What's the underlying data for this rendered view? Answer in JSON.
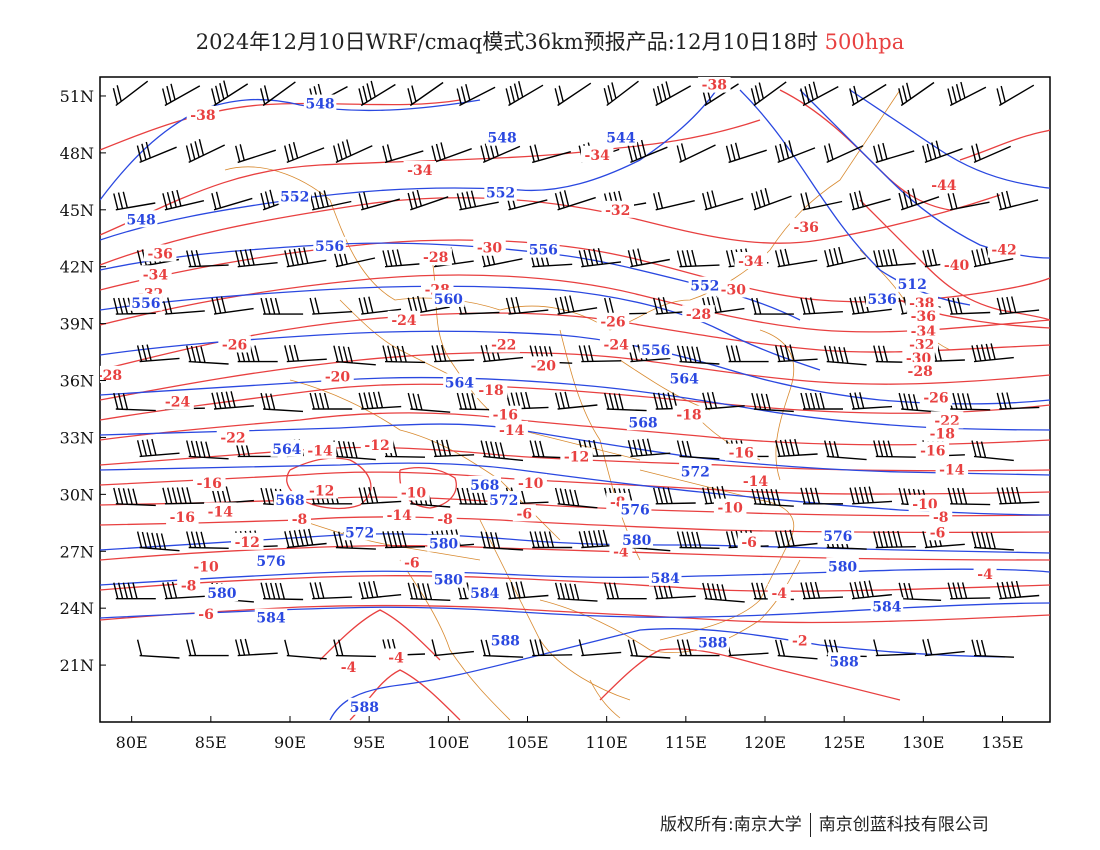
{
  "title": {
    "main": "2024年12月10日WRF/cmaq模式36km预报产品:12月10日18时",
    "level": "500hpa",
    "level_color": "#e84040"
  },
  "footer": {
    "left": "版权所有:南京大学",
    "right": "南京创蓝科技有限公司"
  },
  "colors": {
    "temperature": "#e84040",
    "geopotential": "#2a48e0",
    "wind": "#000000",
    "border": "#d88a30"
  },
  "map": {
    "lon_range": [
      78,
      138
    ],
    "lat_range": [
      18,
      52
    ],
    "lon_ticks": [
      "80E",
      "85E",
      "90E",
      "95E",
      "100E",
      "105E",
      "110E",
      "115E",
      "120E",
      "125E",
      "130E",
      "135E"
    ],
    "lon_tick_values": [
      80,
      85,
      90,
      95,
      100,
      105,
      110,
      115,
      120,
      125,
      130,
      135
    ],
    "lat_ticks": [
      "51N",
      "48N",
      "45N",
      "42N",
      "39N",
      "36N",
      "33N",
      "30N",
      "27N",
      "24N",
      "21N"
    ],
    "lat_tick_values": [
      51,
      48,
      45,
      42,
      39,
      36,
      33,
      30,
      27,
      24,
      21
    ]
  },
  "temperature_labels": [
    {
      "text": "-38",
      "lon": 84.5,
      "lat": 50.0
    },
    {
      "text": "-38",
      "lon": 116.8,
      "lat": 51.6
    },
    {
      "text": "-34",
      "lon": 109.4,
      "lat": 47.9
    },
    {
      "text": "-34",
      "lon": 98.2,
      "lat": 47.1
    },
    {
      "text": "-32",
      "lon": 110.7,
      "lat": 45.0
    },
    {
      "text": "-36",
      "lon": 81.8,
      "lat": 42.7
    },
    {
      "text": "-34",
      "lon": 81.5,
      "lat": 41.6
    },
    {
      "text": "-32",
      "lon": 81.2,
      "lat": 40.6
    },
    {
      "text": "-36",
      "lon": 122.6,
      "lat": 44.1
    },
    {
      "text": "-44",
      "lon": 131.3,
      "lat": 46.3
    },
    {
      "text": "-42",
      "lon": 135.1,
      "lat": 42.9
    },
    {
      "text": "-40",
      "lon": 132.1,
      "lat": 42.1
    },
    {
      "text": "-38",
      "lon": 129.9,
      "lat": 40.1
    },
    {
      "text": "-36",
      "lon": 130.0,
      "lat": 39.4
    },
    {
      "text": "-34",
      "lon": 130.0,
      "lat": 38.6
    },
    {
      "text": "-32",
      "lon": 129.9,
      "lat": 37.9
    },
    {
      "text": "-30",
      "lon": 129.7,
      "lat": 37.2
    },
    {
      "text": "-28",
      "lon": 129.8,
      "lat": 36.5
    },
    {
      "text": "-34",
      "lon": 119.1,
      "lat": 42.3
    },
    {
      "text": "-30",
      "lon": 102.6,
      "lat": 43.0
    },
    {
      "text": "-30",
      "lon": 118.0,
      "lat": 40.8
    },
    {
      "text": "-28",
      "lon": 99.2,
      "lat": 42.5
    },
    {
      "text": "-28",
      "lon": 99.3,
      "lat": 40.8
    },
    {
      "text": "-28",
      "lon": 115.8,
      "lat": 39.5
    },
    {
      "text": "-26",
      "lon": 110.4,
      "lat": 39.1
    },
    {
      "text": "-26",
      "lon": 86.5,
      "lat": 37.9
    },
    {
      "text": "-24",
      "lon": 97.2,
      "lat": 39.2
    },
    {
      "text": "-24",
      "lon": 110.6,
      "lat": 37.9
    },
    {
      "text": "-26",
      "lon": 130.8,
      "lat": 35.1
    },
    {
      "text": "-22",
      "lon": 103.5,
      "lat": 37.9
    },
    {
      "text": "-28",
      "lon": 78.6,
      "lat": 36.3
    },
    {
      "text": "-24",
      "lon": 82.9,
      "lat": 34.9
    },
    {
      "text": "-20",
      "lon": 93.0,
      "lat": 36.2
    },
    {
      "text": "-20",
      "lon": 106.0,
      "lat": 36.8
    },
    {
      "text": "-18",
      "lon": 102.7,
      "lat": 35.5
    },
    {
      "text": "-18",
      "lon": 115.2,
      "lat": 34.2
    },
    {
      "text": "-22",
      "lon": 86.4,
      "lat": 33.0
    },
    {
      "text": "-16",
      "lon": 103.6,
      "lat": 34.2
    },
    {
      "text": "-14",
      "lon": 104.0,
      "lat": 33.4
    },
    {
      "text": "-22",
      "lon": 131.5,
      "lat": 33.9
    },
    {
      "text": "-18",
      "lon": 131.2,
      "lat": 33.2
    },
    {
      "text": "-16",
      "lon": 130.6,
      "lat": 32.3
    },
    {
      "text": "-16",
      "lon": 118.5,
      "lat": 32.2
    },
    {
      "text": "-14",
      "lon": 91.9,
      "lat": 32.3
    },
    {
      "text": "-12",
      "lon": 95.5,
      "lat": 32.6
    },
    {
      "text": "-12",
      "lon": 108.1,
      "lat": 32.0
    },
    {
      "text": "-14",
      "lon": 131.8,
      "lat": 31.3
    },
    {
      "text": "-16",
      "lon": 84.9,
      "lat": 30.6
    },
    {
      "text": "-12",
      "lon": 92.0,
      "lat": 30.2
    },
    {
      "text": "-10",
      "lon": 97.8,
      "lat": 30.1
    },
    {
      "text": "-10",
      "lon": 105.2,
      "lat": 30.6
    },
    {
      "text": "-14",
      "lon": 119.4,
      "lat": 30.7
    },
    {
      "text": "-10",
      "lon": 117.8,
      "lat": 29.3
    },
    {
      "text": "-10",
      "lon": 130.1,
      "lat": 29.5
    },
    {
      "text": "-8",
      "lon": 110.7,
      "lat": 29.6
    },
    {
      "text": "-16",
      "lon": 83.2,
      "lat": 28.8
    },
    {
      "text": "-14",
      "lon": 85.6,
      "lat": 29.1
    },
    {
      "text": "-8",
      "lon": 90.6,
      "lat": 28.7
    },
    {
      "text": "-14",
      "lon": 96.9,
      "lat": 28.9
    },
    {
      "text": "-8",
      "lon": 99.8,
      "lat": 28.7
    },
    {
      "text": "-6",
      "lon": 104.8,
      "lat": 29.0
    },
    {
      "text": "-8",
      "lon": 131.1,
      "lat": 28.8
    },
    {
      "text": "-6",
      "lon": 130.9,
      "lat": 28.0
    },
    {
      "text": "-12",
      "lon": 87.3,
      "lat": 27.5
    },
    {
      "text": "-6",
      "lon": 119.0,
      "lat": 27.5
    },
    {
      "text": "-4",
      "lon": 110.9,
      "lat": 27.0
    },
    {
      "text": "-10",
      "lon": 84.7,
      "lat": 26.2
    },
    {
      "text": "-6",
      "lon": 97.7,
      "lat": 26.4
    },
    {
      "text": "-8",
      "lon": 83.6,
      "lat": 25.2
    },
    {
      "text": "-4",
      "lon": 133.9,
      "lat": 25.8
    },
    {
      "text": "-4",
      "lon": 120.9,
      "lat": 24.8
    },
    {
      "text": "-6",
      "lon": 84.7,
      "lat": 23.7
    },
    {
      "text": "-2",
      "lon": 122.2,
      "lat": 22.3
    },
    {
      "text": "-4",
      "lon": 93.7,
      "lat": 20.9
    },
    {
      "text": "-4",
      "lon": 96.7,
      "lat": 21.4
    }
  ],
  "geopotential_labels": [
    {
      "text": "548",
      "lon": 91.9,
      "lat": 50.6
    },
    {
      "text": "548",
      "lon": 103.4,
      "lat": 48.8
    },
    {
      "text": "544",
      "lon": 110.9,
      "lat": 48.8
    },
    {
      "text": "552",
      "lon": 90.3,
      "lat": 45.7
    },
    {
      "text": "552",
      "lon": 103.3,
      "lat": 45.9
    },
    {
      "text": "548",
      "lon": 80.6,
      "lat": 44.5
    },
    {
      "text": "556",
      "lon": 92.5,
      "lat": 43.1
    },
    {
      "text": "556",
      "lon": 106.0,
      "lat": 42.9
    },
    {
      "text": "552",
      "lon": 116.2,
      "lat": 41.0
    },
    {
      "text": "556",
      "lon": 80.9,
      "lat": 40.1
    },
    {
      "text": "560",
      "lon": 100.0,
      "lat": 40.3
    },
    {
      "text": "536",
      "lon": 127.4,
      "lat": 40.3
    },
    {
      "text": "512",
      "lon": 129.3,
      "lat": 41.1
    },
    {
      "text": "556",
      "lon": 113.1,
      "lat": 37.6
    },
    {
      "text": "564",
      "lon": 100.7,
      "lat": 35.9
    },
    {
      "text": "564",
      "lon": 114.9,
      "lat": 36.1
    },
    {
      "text": "568",
      "lon": 112.3,
      "lat": 33.8
    },
    {
      "text": "564",
      "lon": 89.8,
      "lat": 32.4
    },
    {
      "text": "568",
      "lon": 102.3,
      "lat": 30.5
    },
    {
      "text": "572",
      "lon": 103.5,
      "lat": 29.7
    },
    {
      "text": "572",
      "lon": 115.6,
      "lat": 31.2
    },
    {
      "text": "568",
      "lon": 90.0,
      "lat": 29.7
    },
    {
      "text": "572",
      "lon": 94.4,
      "lat": 28.0
    },
    {
      "text": "576",
      "lon": 111.8,
      "lat": 29.2
    },
    {
      "text": "576",
      "lon": 124.6,
      "lat": 27.8
    },
    {
      "text": "580",
      "lon": 99.7,
      "lat": 27.4
    },
    {
      "text": "580",
      "lon": 111.9,
      "lat": 27.6
    },
    {
      "text": "576",
      "lon": 88.8,
      "lat": 26.5
    },
    {
      "text": "580",
      "lon": 124.9,
      "lat": 26.2
    },
    {
      "text": "584",
      "lon": 113.7,
      "lat": 25.6
    },
    {
      "text": "580",
      "lon": 100.0,
      "lat": 25.5
    },
    {
      "text": "580",
      "lon": 85.7,
      "lat": 24.8
    },
    {
      "text": "584",
      "lon": 102.3,
      "lat": 24.8
    },
    {
      "text": "584",
      "lon": 127.7,
      "lat": 24.1
    },
    {
      "text": "584",
      "lon": 88.8,
      "lat": 23.5
    },
    {
      "text": "588",
      "lon": 103.6,
      "lat": 22.3
    },
    {
      "text": "588",
      "lon": 116.7,
      "lat": 22.2
    },
    {
      "text": "588",
      "lon": 125.0,
      "lat": 21.2
    },
    {
      "text": "588",
      "lon": 94.7,
      "lat": 18.8
    }
  ]
}
